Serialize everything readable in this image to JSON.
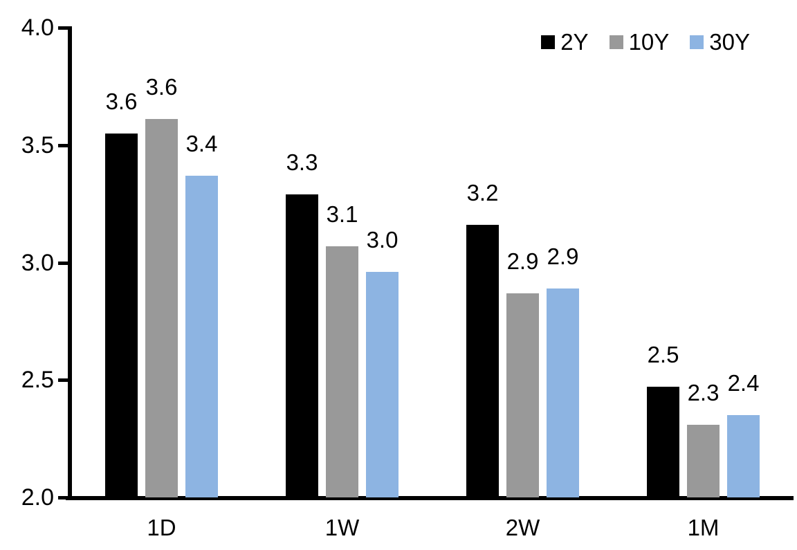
{
  "chart_data": {
    "type": "bar",
    "title": "",
    "xlabel": "",
    "ylabel": "",
    "grid": false,
    "background": "#FFFFFF",
    "axis_color": "#000000",
    "ylim": [
      2.0,
      4.0
    ],
    "yticks": [
      {
        "value": 4.0,
        "label": "4.0"
      },
      {
        "value": 3.5,
        "label": "3.5"
      },
      {
        "value": 3.0,
        "label": "3.0"
      },
      {
        "value": 2.5,
        "label": "2.5"
      },
      {
        "value": 2.0,
        "label": "2.0"
      }
    ],
    "categories": [
      "1D",
      "1W",
      "2W",
      "1M"
    ],
    "series": [
      {
        "name": "2Y",
        "color": "#000000",
        "values": [
          3.55,
          3.29,
          3.16,
          2.47
        ],
        "labels": [
          "3.6",
          "3.3",
          "3.2",
          "2.5"
        ]
      },
      {
        "name": "10Y",
        "color": "#999999",
        "values": [
          3.61,
          3.07,
          2.87,
          2.31
        ],
        "labels": [
          "3.6",
          "3.1",
          "2.9",
          "2.3"
        ]
      },
      {
        "name": "30Y",
        "color": "#8DB4E2",
        "values": [
          3.37,
          2.96,
          2.89,
          2.35
        ],
        "labels": [
          "3.4",
          "3.0",
          "2.9",
          "2.4"
        ]
      }
    ],
    "legend": {
      "position": "top-right",
      "entries": [
        "2Y",
        "10Y",
        "30Y"
      ]
    }
  }
}
